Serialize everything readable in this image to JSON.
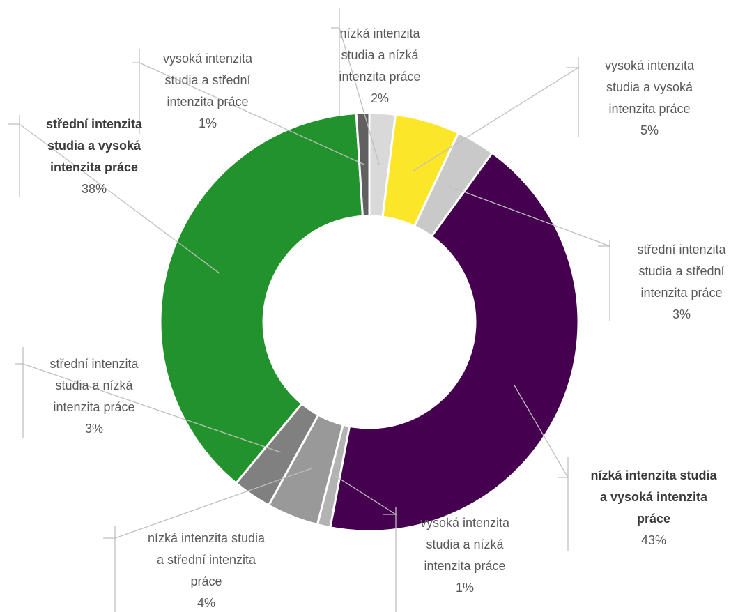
{
  "chart_data": {
    "type": "pie",
    "donut": true,
    "unit": "%",
    "slices": [
      {
        "label": [
          "nízká intenzita",
          "studia a nízká",
          "intenzita práce"
        ],
        "value": 2,
        "value_label": "2%",
        "color": "#d9d9d9",
        "bold": false
      },
      {
        "label": [
          "vysoká intenzita",
          "studia a vysoká",
          "intenzita práce"
        ],
        "value": 5,
        "value_label": "5%",
        "color": "#fce62a",
        "bold": false
      },
      {
        "label": [
          "střední intenzita",
          "studia a střední",
          "intenzita práce"
        ],
        "value": 3,
        "value_label": "3%",
        "color": "#c9c9c9",
        "bold": false
      },
      {
        "label": [
          "nízká intenzita studia",
          "a vysoká intenzita",
          "práce"
        ],
        "value": 43,
        "value_label": "43%",
        "color": "#45004f",
        "bold": true
      },
      {
        "label": [
          "vysoká intenzita",
          "studia a nízká",
          "intenzita práce"
        ],
        "value": 1,
        "value_label": "1%",
        "color": "#b3b3b3",
        "bold": false
      },
      {
        "label": [
          "nízká intenzita studia",
          "a střední intenzita",
          "práce"
        ],
        "value": 4,
        "value_label": "4%",
        "color": "#999999",
        "bold": false
      },
      {
        "label": [
          "střední intenzita",
          "studia a nízká",
          "intenzita práce"
        ],
        "value": 3,
        "value_label": "3%",
        "color": "#808080",
        "bold": false
      },
      {
        "label": [
          "střední intenzita",
          "studia a vysoká",
          "intenzita práce"
        ],
        "value": 38,
        "value_label": "38%",
        "color": "#22922d",
        "bold": true
      },
      {
        "label": [
          "vysoká intenzita",
          "studia a střední",
          "intenzita práce"
        ],
        "value": 1,
        "value_label": "1%",
        "color": "#606060",
        "bold": false
      }
    ]
  }
}
